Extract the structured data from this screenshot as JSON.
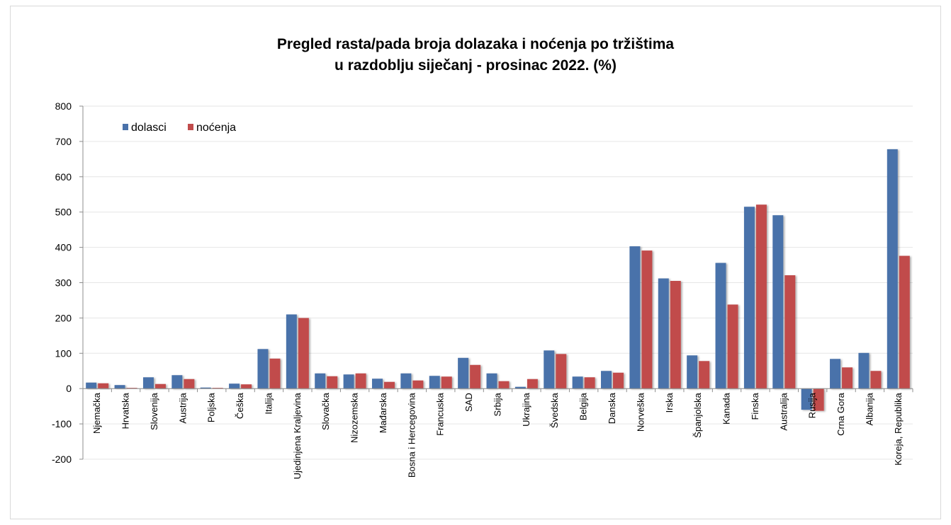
{
  "chart_data": {
    "type": "bar",
    "title_line1": "Pregled rasta/pada broja dolazaka i noćenja po tržištima",
    "title_line2": "u razdoblju siječanj - prosinac 2022. (%)",
    "xlabel": "",
    "ylabel": "",
    "ylim": [
      -200,
      800
    ],
    "yticks": [
      800,
      700,
      600,
      500,
      400,
      300,
      200,
      100,
      0,
      -100,
      -200
    ],
    "legend_position": "top-left",
    "grid": true,
    "categories": [
      "Njemačka",
      "Hrvatska",
      "Slovenija",
      "Austrija",
      "Poljska",
      "Češka",
      "Italija",
      "Ujedinjena Kraljevina",
      "Slovačka",
      "Nizozemska",
      "Mađarska",
      "Bosna i Hercegovina",
      "Francuska",
      "SAD",
      "Srbija",
      "Ukrajina",
      "Švedska",
      "Belgija",
      "Danska",
      "Norveška",
      "Irska",
      "Španjolska",
      "Kanada",
      "Finska",
      "Australija",
      "Rusija",
      "Crna Gora",
      "Albanija",
      "Koreja, Republika"
    ],
    "series": [
      {
        "name": "dolasci",
        "color": "#4a72aa",
        "values": [
          17,
          10,
          32,
          38,
          3,
          14,
          112,
          210,
          43,
          40,
          28,
          43,
          36,
          87,
          43,
          5,
          108,
          34,
          50,
          403,
          312,
          94,
          356,
          515,
          491,
          -60,
          84,
          101,
          678
        ]
      },
      {
        "name": "noćenja",
        "color": "#c14c4c",
        "values": [
          15,
          2,
          13,
          27,
          2,
          12,
          85,
          200,
          35,
          43,
          19,
          23,
          34,
          67,
          21,
          27,
          98,
          32,
          45,
          391,
          305,
          78,
          238,
          521,
          321,
          -63,
          60,
          50,
          376
        ]
      }
    ]
  }
}
